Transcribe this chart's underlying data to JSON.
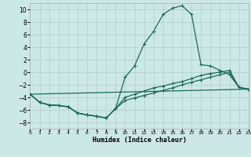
{
  "xlabel": "Humidex (Indice chaleur)",
  "background_color": "#cce8e6",
  "grid_color": "#b0cecc",
  "line_color": "#1a6b5a",
  "xlim": [
    0,
    23
  ],
  "ylim": [
    -9,
    11
  ],
  "xticks": [
    0,
    1,
    2,
    3,
    4,
    5,
    6,
    7,
    8,
    9,
    10,
    11,
    12,
    13,
    14,
    15,
    16,
    17,
    18,
    19,
    20,
    21,
    22,
    23
  ],
  "yticks": [
    -8,
    -6,
    -4,
    -2,
    0,
    2,
    4,
    6,
    8,
    10
  ],
  "curve1_x": [
    0,
    1,
    2,
    3,
    4,
    5,
    6,
    7,
    8,
    9,
    10,
    11,
    12,
    13,
    14,
    15,
    16,
    17,
    18,
    19,
    20,
    21,
    22,
    23
  ],
  "curve1_y": [
    -3.5,
    -4.8,
    -5.2,
    -5.3,
    -5.5,
    -6.5,
    -6.8,
    -7.0,
    -7.3,
    -5.8,
    -0.8,
    1.0,
    4.5,
    6.5,
    9.2,
    10.2,
    10.6,
    9.2,
    1.2,
    1.0,
    0.3,
    -0.4,
    -2.4,
    -2.7
  ],
  "curve2_x": [
    0,
    23
  ],
  "curve2_y": [
    -3.5,
    -2.7
  ],
  "curve3_x": [
    0,
    1,
    2,
    3,
    4,
    5,
    6,
    7,
    8,
    9,
    10,
    11,
    12,
    13,
    14,
    15,
    16,
    17,
    18,
    19,
    20,
    21,
    22,
    23
  ],
  "curve3_y": [
    -3.5,
    -4.8,
    -5.2,
    -5.3,
    -5.5,
    -6.5,
    -6.8,
    -7.0,
    -7.3,
    -5.8,
    -4.0,
    -3.5,
    -3.0,
    -2.5,
    -2.2,
    -1.8,
    -1.5,
    -1.0,
    -0.5,
    -0.2,
    0.0,
    0.3,
    -2.4,
    -2.7
  ],
  "curve4_x": [
    0,
    1,
    2,
    3,
    4,
    5,
    6,
    7,
    8,
    9,
    10,
    11,
    12,
    13,
    14,
    15,
    16,
    17,
    18,
    19,
    20,
    21,
    22,
    23
  ],
  "curve4_y": [
    -3.5,
    -4.8,
    -5.2,
    -5.3,
    -5.5,
    -6.5,
    -6.8,
    -7.0,
    -7.3,
    -5.8,
    -4.5,
    -4.1,
    -3.7,
    -3.3,
    -2.9,
    -2.5,
    -2.0,
    -1.6,
    -1.2,
    -0.8,
    -0.4,
    0.0,
    -2.4,
    -2.7
  ]
}
